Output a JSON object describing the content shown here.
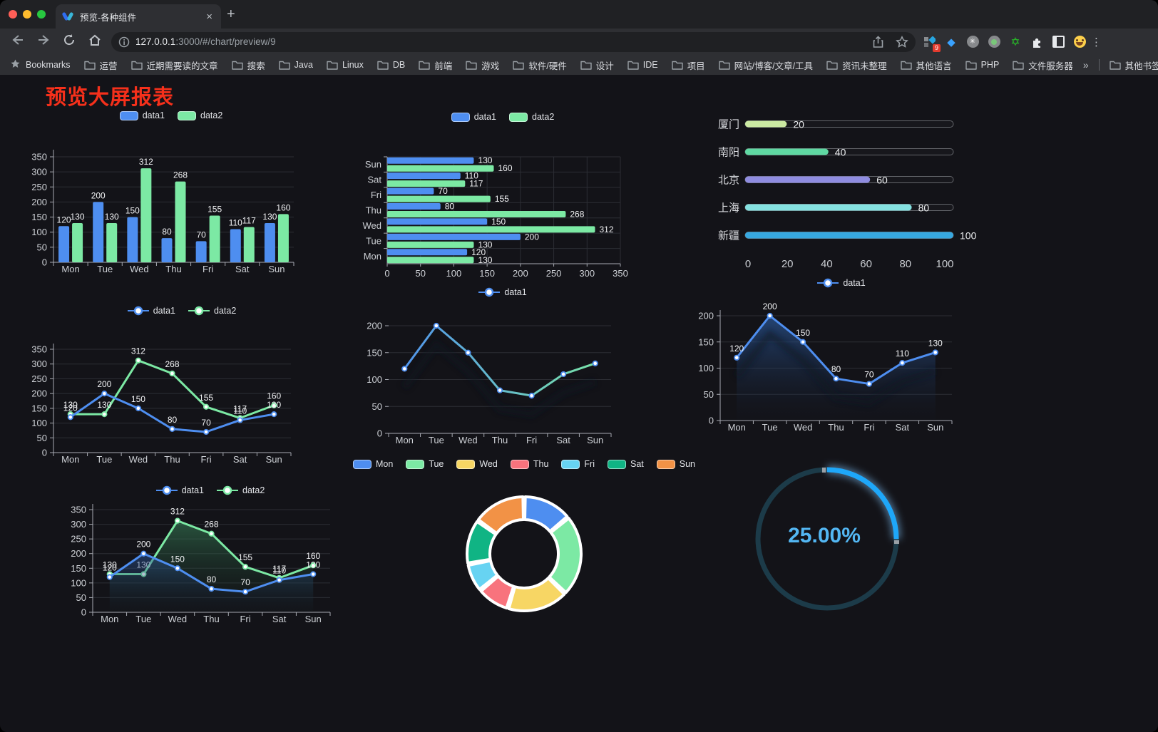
{
  "browser": {
    "tab": {
      "title": "预览-各种组件",
      "close": "×",
      "new_tab": "+"
    },
    "url": {
      "host": "127.0.0.1",
      "rest": ":3000/#/chart/preview/9"
    },
    "bookmarks": {
      "label": "Bookmarks",
      "items": [
        "运营",
        "近期需要读的文章",
        "搜索",
        "Java",
        "Linux",
        "DB",
        "前端",
        "游戏",
        "软件/硬件",
        "设计",
        "IDE",
        "项目",
        "网站/博客/文章/工具",
        "资讯未整理",
        "其他语言",
        "PHP",
        "文件服务器"
      ],
      "overflow": "»",
      "other": "其他书签"
    },
    "extensions": {
      "badge": "9"
    },
    "menu": "⋮"
  },
  "page": {
    "title": "预览大屏报表",
    "title_color": "#f5301b"
  },
  "chart_data": {
    "categories": [
      "Mon",
      "Tue",
      "Wed",
      "Thu",
      "Fri",
      "Sat",
      "Sun"
    ],
    "series": [
      {
        "name": "data1",
        "color": "#4e8ef0",
        "values": [
          120,
          200,
          150,
          80,
          70,
          110,
          130
        ]
      },
      {
        "name": "data2",
        "color": "#7ce9a4",
        "values": [
          130,
          130,
          312,
          268,
          155,
          117,
          160
        ]
      }
    ]
  },
  "charts": {
    "bar": {
      "type": "bar",
      "ylim": [
        0,
        350
      ],
      "yticks": [
        0,
        50,
        100,
        150,
        200,
        250,
        300,
        350
      ],
      "legend": [
        "data1",
        "data2"
      ]
    },
    "hbar": {
      "type": "hbar",
      "xlim": [
        0,
        350
      ],
      "xticks": [
        0,
        50,
        100,
        150,
        200,
        250,
        300,
        350
      ],
      "legend": [
        "data1",
        "data2"
      ],
      "order_top_to_bottom": [
        "Sun",
        "Sat",
        "Fri",
        "Thu",
        "Wed",
        "Tue",
        "Mon"
      ]
    },
    "city": {
      "type": "progress-bars",
      "xticks": [
        0,
        20,
        40,
        60,
        80,
        100
      ],
      "rows": [
        {
          "label": "厦门",
          "value": 20,
          "color": "#cbe9a2"
        },
        {
          "label": "南阳",
          "value": 40,
          "color": "#5fd8a2"
        },
        {
          "label": "北京",
          "value": 60,
          "color": "#8f8ce0"
        },
        {
          "label": "上海",
          "value": 80,
          "color": "#84e1e0"
        },
        {
          "label": "新疆",
          "value": 100,
          "color": "#37a8e0"
        }
      ]
    },
    "line2": {
      "type": "line",
      "ylim": [
        0,
        350
      ],
      "yticks": [
        0,
        50,
        100,
        150,
        200,
        250,
        300,
        350
      ],
      "legend": [
        "data1",
        "data2"
      ],
      "labels": true
    },
    "line1": {
      "type": "line",
      "ylim": [
        0,
        200
      ],
      "yticks": [
        0,
        50,
        100,
        150,
        200
      ],
      "legend": [
        "data1"
      ],
      "labels": false,
      "gradient": [
        "#4e8ef0",
        "#7ce9a4"
      ]
    },
    "area1": {
      "type": "area-line",
      "ylim": [
        0,
        200
      ],
      "yticks": [
        0,
        50,
        100,
        150,
        200
      ],
      "legend": [
        "data1"
      ],
      "labels": true
    },
    "area2": {
      "type": "area-line",
      "ylim": [
        0,
        350
      ],
      "yticks": [
        0,
        50,
        100,
        150,
        200,
        250,
        300,
        350
      ],
      "legend": [
        "data1",
        "data2"
      ],
      "labels": true
    },
    "pie": {
      "type": "donut",
      "labels": [
        "Mon",
        "Tue",
        "Wed",
        "Thu",
        "Fri",
        "Sat",
        "Sun"
      ],
      "values": [
        120,
        200,
        150,
        80,
        70,
        110,
        130
      ],
      "colors": [
        "#4e8ef0",
        "#7ce9a4",
        "#f7d664",
        "#f8737d",
        "#67d3f2",
        "#10b484",
        "#f29246"
      ]
    },
    "gauge": {
      "type": "gauge",
      "value": 25,
      "label": "25.00%",
      "color": "#1ea7f9",
      "track": "#1c3b49",
      "text_color": "#53b7f3"
    }
  }
}
